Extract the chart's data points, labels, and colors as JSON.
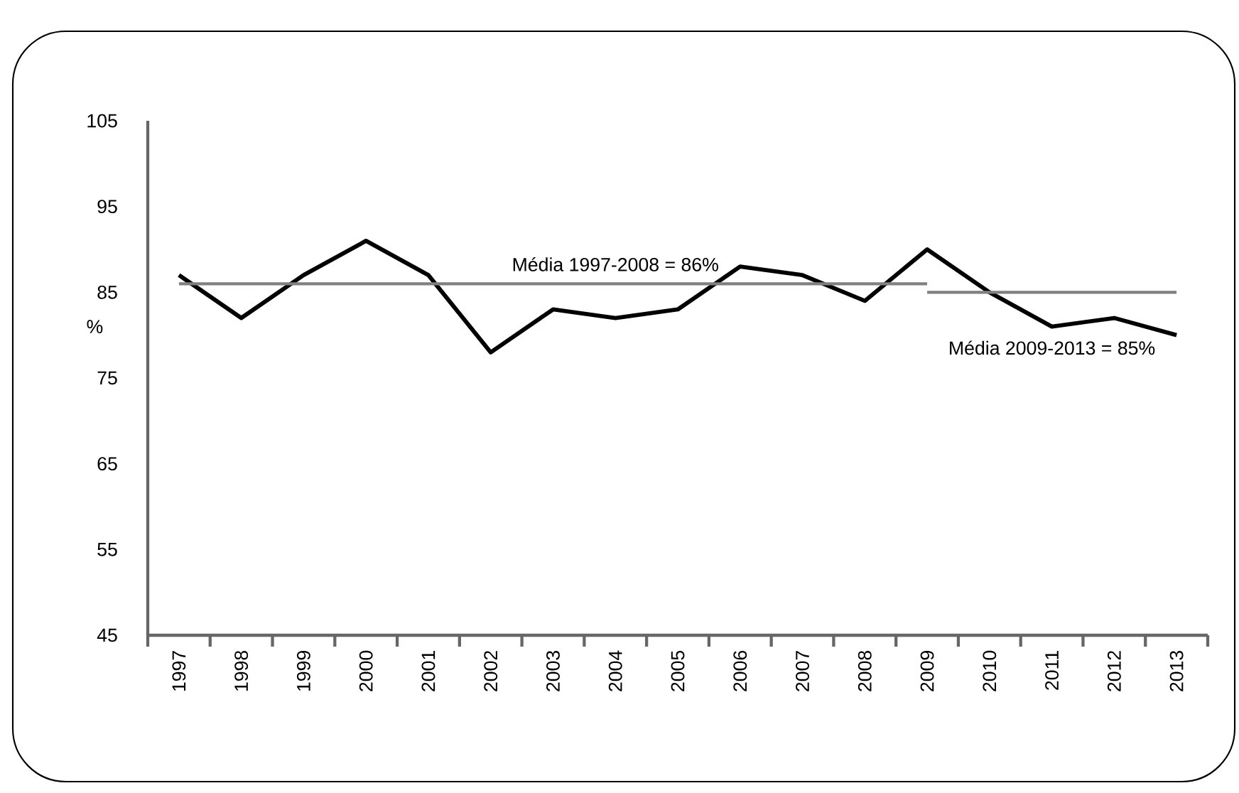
{
  "chart_data": {
    "type": "line",
    "ylabel": "%",
    "categories": [
      "1997",
      "1998",
      "1999",
      "2000",
      "2001",
      "2002",
      "2003",
      "2004",
      "2005",
      "2006",
      "2007",
      "2008",
      "2009",
      "2010",
      "2011",
      "2012",
      "2013"
    ],
    "series": [
      {
        "color": "#000000",
        "values": [
          87,
          82,
          87,
          91,
          87,
          78,
          83,
          82,
          83,
          88,
          87,
          84,
          90,
          85,
          81,
          82,
          80
        ]
      },
      {
        "color": "#808080",
        "values": [
          86,
          86,
          86,
          86,
          86,
          86,
          86,
          86,
          86,
          86,
          86,
          86,
          86,
          null,
          null,
          null,
          null
        ]
      },
      {
        "color": "#808080",
        "values": [
          null,
          null,
          null,
          null,
          null,
          null,
          null,
          null,
          null,
          null,
          null,
          null,
          85,
          85,
          85,
          85,
          85
        ]
      }
    ],
    "ylim": [
      45,
      105
    ],
    "yticks": [
      45,
      55,
      65,
      75,
      85,
      95,
      105
    ],
    "annotations": [
      {
        "text": "Média 1997-2008 = 86%",
        "x": "2004",
        "y": 86
      },
      {
        "text": "Média 2009-2013 = 85%",
        "x": "2011",
        "y": 85
      }
    ]
  }
}
